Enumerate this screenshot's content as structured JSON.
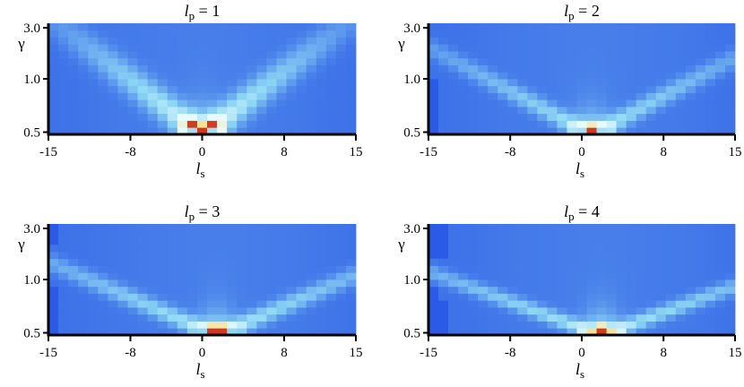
{
  "chart_data": [
    {
      "type": "heatmap",
      "title": "l_p = 1",
      "title_parts": {
        "var": "l",
        "sub": "p",
        "rest": " = 1"
      },
      "xlabel_parts": {
        "var": "l",
        "sub": "s"
      },
      "ylabel": "γ",
      "xticks": [
        "-15",
        "-8",
        "0",
        "8",
        "15"
      ],
      "yticks": [
        "3.0",
        "1.0",
        "0.5"
      ],
      "xlim": [
        -15,
        15
      ],
      "ylim": [
        0.5,
        3.0
      ],
      "ridge_center": 0,
      "ridge_slope": 0.9,
      "ridge_width": 1.6,
      "ridge_amp": 0.55,
      "peak_amp": 0.75,
      "hot_cells": [
        {
          "x": 0,
          "row": 0,
          "v": 1.0
        },
        {
          "x": 0,
          "row": 1,
          "v": 0.85
        },
        {
          "x": -1,
          "row": 0,
          "v": 0.55
        },
        {
          "x": 1,
          "row": 0,
          "v": 0.55
        }
      ]
    },
    {
      "type": "heatmap",
      "title": "l_p = 2",
      "title_parts": {
        "var": "l",
        "sub": "p",
        "rest": " = 2"
      },
      "xlabel_parts": {
        "var": "l",
        "sub": "s"
      },
      "ylabel": "γ",
      "xticks": [
        "-15",
        "-8",
        "0",
        "8",
        "15"
      ],
      "yticks": [
        "3.0",
        "1.0",
        "0.5"
      ],
      "xlim": [
        -15,
        15
      ],
      "ylim": [
        0.5,
        3.0
      ],
      "ridge_center": 1,
      "ridge_slope": 1.3,
      "ridge_width": 1.3,
      "ridge_amp": 0.42,
      "peak_amp": 0.6,
      "hot_cells": [
        {
          "x": 1,
          "row": 0,
          "v": 1.0
        },
        {
          "x": 1,
          "row": 1,
          "v": 0.8
        },
        {
          "x": 0,
          "row": 0,
          "v": 0.55
        },
        {
          "x": 2,
          "row": 0,
          "v": 0.55
        }
      ]
    },
    {
      "type": "heatmap",
      "title": "l_p = 3",
      "title_parts": {
        "var": "l",
        "sub": "p",
        "rest": " = 3"
      },
      "xlabel_parts": {
        "var": "l",
        "sub": "s"
      },
      "ylabel": "γ",
      "xticks": [
        "-15",
        "-8",
        "0",
        "8",
        "15"
      ],
      "yticks": [
        "3.0",
        "1.0",
        "0.5"
      ],
      "xlim": [
        -15,
        15
      ],
      "ylim": [
        0.5,
        3.0
      ],
      "ridge_center": 1.5,
      "ridge_slope": 1.6,
      "ridge_width": 1.5,
      "ridge_amp": 0.45,
      "peak_amp": 0.6,
      "hot_cells": [
        {
          "x": 1,
          "row": 0,
          "v": 1.0
        },
        {
          "x": 2,
          "row": 0,
          "v": 1.0
        },
        {
          "x": 1,
          "row": 1,
          "v": 0.82
        },
        {
          "x": 2,
          "row": 1,
          "v": 0.82
        },
        {
          "x": 0,
          "row": 0,
          "v": 0.5
        },
        {
          "x": 3,
          "row": 0,
          "v": 0.5
        }
      ]
    },
    {
      "type": "heatmap",
      "title": "l_p = 4",
      "title_parts": {
        "var": "l",
        "sub": "p",
        "rest": " = 4"
      },
      "xlabel_parts": {
        "var": "l",
        "sub": "s"
      },
      "ylabel": "γ",
      "xticks": [
        "-15",
        "-8",
        "0",
        "8",
        "15"
      ],
      "yticks": [
        "3.0",
        "1.0",
        "0.5"
      ],
      "xlim": [
        -15,
        15
      ],
      "ylim": [
        0.5,
        3.0
      ],
      "ridge_center": 2,
      "ridge_slope": 1.9,
      "ridge_width": 1.5,
      "ridge_amp": 0.45,
      "peak_amp": 0.6,
      "hot_cells": [
        {
          "x": 2,
          "row": 0,
          "v": 1.0
        },
        {
          "x": 2,
          "row": 1,
          "v": 0.8
        },
        {
          "x": 1,
          "row": 0,
          "v": 0.85
        },
        {
          "x": 3,
          "row": 0,
          "v": 0.85
        },
        {
          "x": 1,
          "row": 1,
          "v": 0.6
        },
        {
          "x": 3,
          "row": 1,
          "v": 0.6
        }
      ]
    }
  ],
  "colors": {
    "background": "#2b5be6",
    "low": "#2b5be6",
    "mid": "#8fd8f4",
    "light": "#e8fbff",
    "warm": "#f7df8c",
    "hot": "#d5361c",
    "axis": "#000000"
  }
}
